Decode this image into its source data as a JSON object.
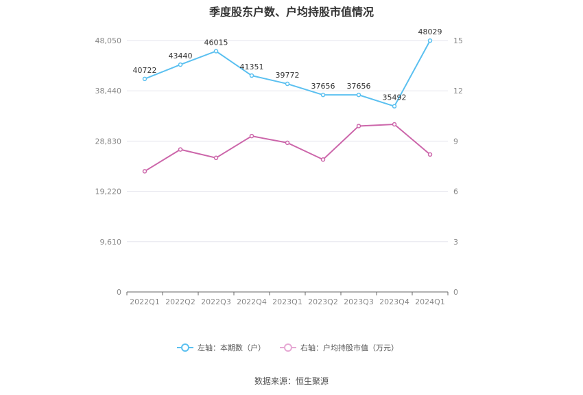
{
  "chart_data": {
    "type": "line",
    "title": "季度股东户数、户均持股市值情况",
    "categories": [
      "2022Q1",
      "2022Q2",
      "2022Q3",
      "2022Q4",
      "2023Q1",
      "2023Q2",
      "2023Q3",
      "2023Q4",
      "2024Q1"
    ],
    "left_axis": {
      "ylim": [
        0,
        48050
      ],
      "ticks": [
        "0",
        "9,610",
        "19,220",
        "28,830",
        "38,440",
        "48,050"
      ]
    },
    "right_axis": {
      "ylim": [
        0,
        15
      ],
      "ticks": [
        "0",
        "3",
        "6",
        "9",
        "12",
        "15"
      ]
    },
    "series": [
      {
        "name": "左轴：本期数（户）",
        "axis": "left",
        "color": "#5bc0f0",
        "values": [
          40722,
          43440,
          46015,
          41351,
          39772,
          37656,
          37656,
          35492,
          48029
        ],
        "labels": [
          "40722",
          "43440",
          "46015",
          "41351",
          "39772",
          "37656",
          "37656",
          "35492",
          "48029"
        ]
      },
      {
        "name": "右轴：户均持股市值（万元）",
        "axis": "right",
        "color": "#cc66aa",
        "values": [
          7.2,
          8.5,
          8.0,
          9.3,
          8.9,
          7.9,
          9.9,
          10.0,
          8.2
        ]
      }
    ],
    "grid": true,
    "legend_position": "bottom"
  },
  "source": "数据来源：恒生聚源"
}
